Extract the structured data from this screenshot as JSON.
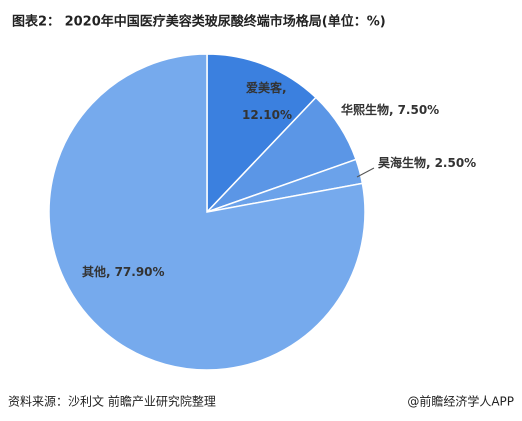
{
  "chart_data": {
    "type": "pie",
    "title": "图表2： 2020年中国医疗美容类玻尿酸终端市场格局(单位：%)",
    "categories": [
      "爱美客",
      "华熙生物",
      "昊海生物",
      "其他"
    ],
    "values": [
      12.1,
      7.5,
      2.5,
      77.9
    ],
    "value_labels": [
      "12.10%",
      "7.50%",
      "2.50%",
      "77.90%"
    ],
    "label_separator": ",",
    "colors": [
      "#3b80df",
      "#5b96e6",
      "#6ba2ea",
      "#76aaed"
    ],
    "source": "资料来源：沙利文 前瞻产业研究院整理",
    "credit": "@前瞻经济学人APP"
  }
}
